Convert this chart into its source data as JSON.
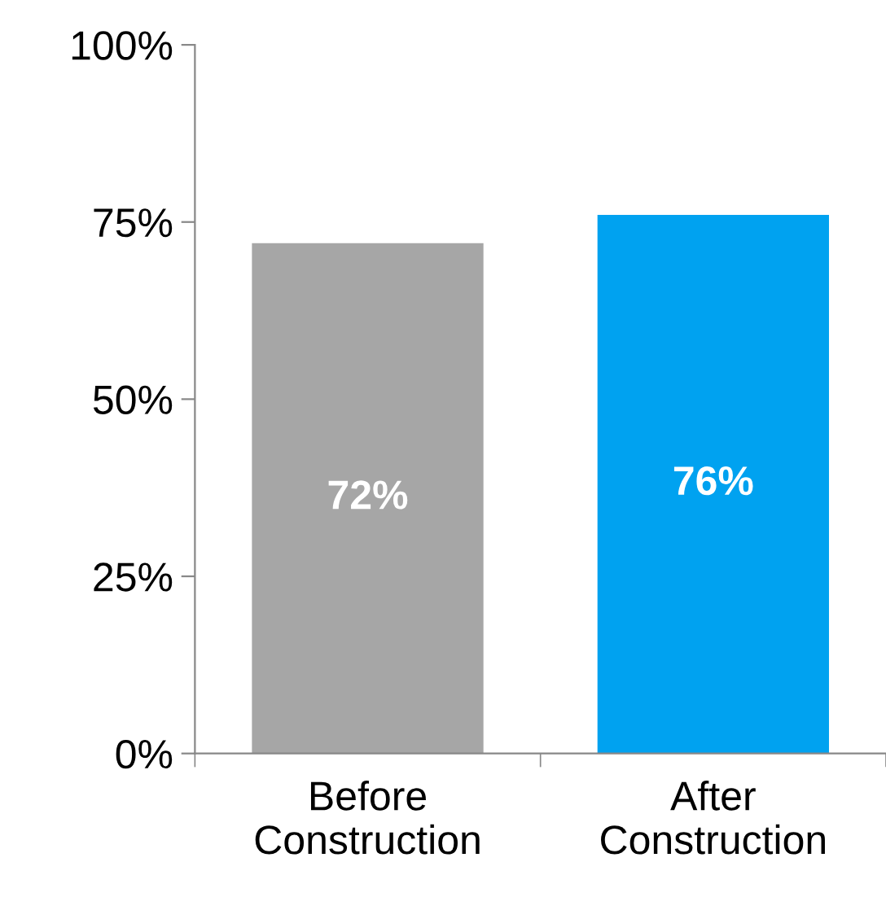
{
  "chart_data": {
    "type": "bar",
    "categories": [
      "Before\nConstruction",
      "After\nConstruction"
    ],
    "values": [
      72,
      76
    ],
    "colors": [
      "#a6a6a6",
      "#00a2f0"
    ],
    "value_labels": [
      "72%",
      "76%"
    ],
    "ylim": [
      0,
      100
    ],
    "yticks": [
      {
        "value": 0,
        "label": "0%"
      },
      {
        "value": 25,
        "label": "25%"
      },
      {
        "value": 50,
        "label": "50%"
      },
      {
        "value": 75,
        "label": "75%"
      },
      {
        "value": 100,
        "label": "100%"
      }
    ],
    "grid": false,
    "legend": false
  }
}
